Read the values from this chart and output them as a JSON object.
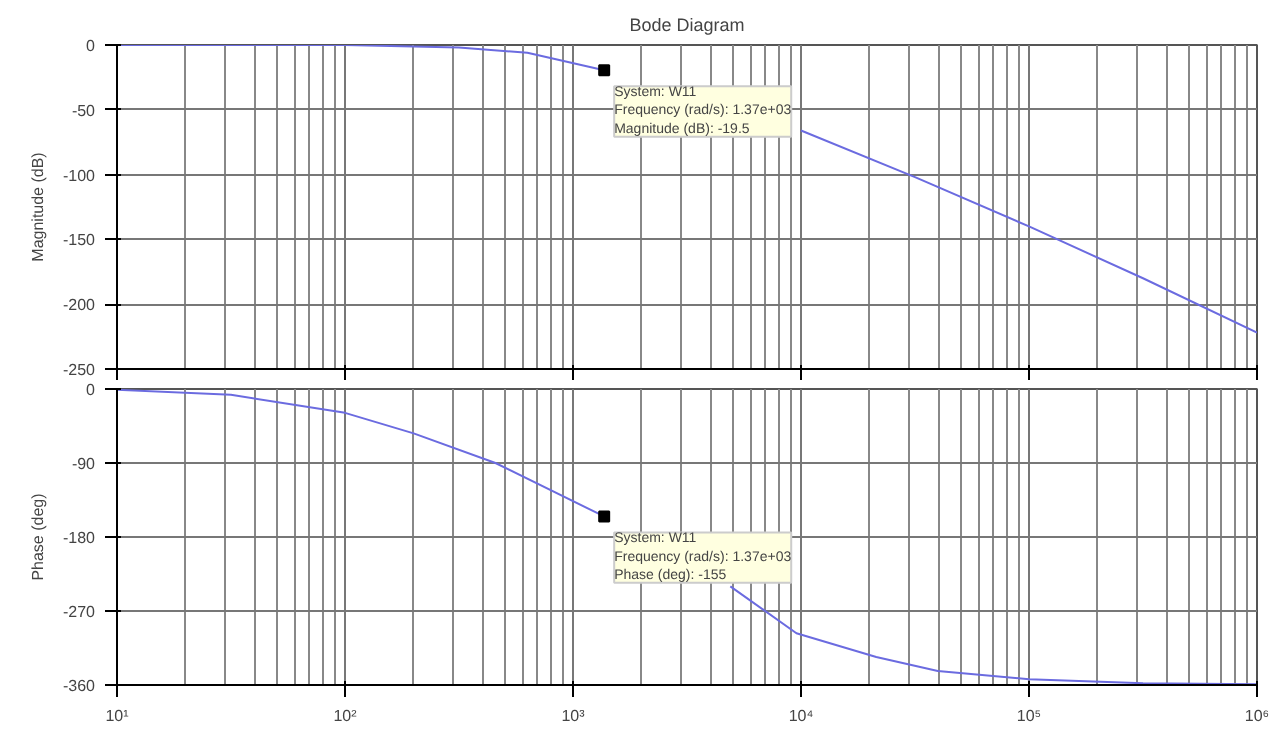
{
  "chart_data": [
    {
      "type": "line",
      "title": "Bode Diagram",
      "ylabel": "Magnitude (dB)",
      "log": "x",
      "grid": true,
      "tick_labels": "y",
      "xlim": [
        10,
        1000000
      ],
      "ylim": [
        -250,
        0
      ],
      "xticks": [
        {
          "value": 10,
          "label": null
        },
        {
          "value": 100,
          "label": null
        },
        {
          "value": 1000,
          "label": null
        },
        {
          "value": 10000,
          "label": null
        },
        {
          "value": 100000,
          "label": null
        },
        {
          "value": 1000000,
          "label": null
        }
      ],
      "yticks": [
        -250,
        -200,
        -150,
        -100,
        -50,
        0
      ],
      "series": [
        {
          "color": "#6b6be0",
          "x": [
            10,
            100,
            316,
            631,
            1370,
            3162,
            10000,
            31623,
            100000,
            316228,
            1000000
          ],
          "values": [
            0,
            0,
            -2,
            -6,
            -19.5,
            null,
            -66,
            -102,
            -140,
            -180,
            -222
          ]
        }
      ],
      "annotations": [
        {
          "text": "System: W11\nFrequency (rad/s): 1.37e+03\nMagnitude (dB): -19.5",
          "x": 1370,
          "y": -19.5
        }
      ]
    },
    {
      "type": "line",
      "ylabel": "Phase (deg)",
      "log": "x",
      "grid": true,
      "xlim": [
        10,
        1000000
      ],
      "ylim": [
        -360,
        0
      ],
      "xticks": [
        {
          "value": 10,
          "label": "10¹"
        },
        {
          "value": 100,
          "label": "10²"
        },
        {
          "value": 1000,
          "label": "10³"
        },
        {
          "value": 10000,
          "label": "10⁴"
        },
        {
          "value": 100000,
          "label": "10⁵"
        },
        {
          "value": 1000000,
          "label": "10⁶"
        }
      ],
      "yticks": [
        -360,
        -270,
        -180,
        -90,
        0
      ],
      "series": [
        {
          "color": "#6b6be0",
          "x": [
            10,
            31.6,
            100,
            200,
            457,
            1370,
            3162,
            4898,
            9550,
            21380,
            39811,
            100000,
            316228,
            1000000
          ],
          "values": [
            -1,
            -7,
            -29,
            -54,
            -90,
            -155,
            null,
            -240,
            -297,
            -326,
            -343,
            -353,
            -358,
            -359
          ]
        }
      ],
      "annotations": [
        {
          "text": "System: W11\nFrequency (rad/s): 1.37e+03\nPhase (deg): -155",
          "x": 1370,
          "y": -155
        }
      ]
    }
  ]
}
